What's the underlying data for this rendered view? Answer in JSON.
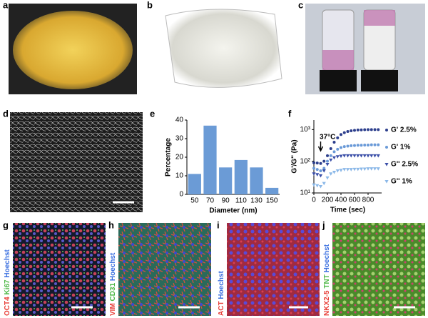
{
  "panels": {
    "labels": [
      "a",
      "b",
      "c",
      "d",
      "e",
      "f",
      "g",
      "h",
      "i",
      "j"
    ]
  },
  "stains": [
    [
      {
        "text": "OCT4",
        "color": "#e8403a"
      },
      {
        "text": "Ki67",
        "color": "#4fb848"
      },
      {
        "text": "Hoechst",
        "color": "#3a6fe0"
      }
    ],
    [
      {
        "text": "VIM",
        "color": "#e8403a"
      },
      {
        "text": "CD31",
        "color": "#4fb848"
      },
      {
        "text": "Hoechst",
        "color": "#3a6fe0"
      }
    ],
    [
      {
        "text": "ACT",
        "color": "#e8403a"
      },
      {
        "text": "Hoechst",
        "color": "#3a6fe0"
      }
    ],
    [
      {
        "text": "NKX2-5",
        "color": "#e8403a"
      },
      {
        "text": "TNT",
        "color": "#4fb848"
      },
      {
        "text": "Hoechst",
        "color": "#3a6fe0"
      }
    ]
  ],
  "chart_data": [
    {
      "type": "bar",
      "xlabel": "Diameter (nm)",
      "ylabel": "Percentage",
      "categories": [
        "50",
        "70",
        "90",
        "110",
        "130",
        "150"
      ],
      "values": [
        11,
        37,
        14.5,
        18.5,
        14.5,
        3.5
      ],
      "color": "#6b9bd6",
      "ylim": [
        0,
        40
      ],
      "yticks": [
        0,
        10,
        20,
        30,
        40
      ]
    },
    {
      "type": "scatter",
      "xlabel": "Time (sec)",
      "ylabel": "G'/G'' (Pa)",
      "annotation": "37°C",
      "log_y": true,
      "legend": "right",
      "x": [
        0,
        50,
        100,
        150,
        200,
        250,
        300,
        350,
        400,
        450,
        500,
        550,
        600,
        650,
        700,
        750,
        800,
        850,
        900,
        950
      ],
      "xlim": [
        0,
        1000
      ],
      "xticks": [
        0,
        200,
        400,
        600,
        800
      ],
      "ylim": [
        10,
        2000
      ],
      "yticks": [
        {
          "value": 10,
          "label": "10¹"
        },
        {
          "value": 100,
          "label": "10²"
        },
        {
          "value": 1000,
          "label": "10³"
        }
      ],
      "series": [
        {
          "name": "G' 2.5%",
          "color": "#2c3e8c",
          "marker": "circle",
          "values": [
            90,
            88,
            85,
            100,
            150,
            250,
            400,
            550,
            700,
            800,
            870,
            920,
            950,
            970,
            980,
            990,
            1000,
            1000,
            1000,
            1000
          ]
        },
        {
          "name": "G' 1%",
          "color": "#6a9ad8",
          "marker": "circle",
          "values": [
            60,
            55,
            50,
            60,
            100,
            150,
            200,
            240,
            270,
            290,
            300,
            310,
            315,
            320,
            320,
            325,
            325,
            330,
            330,
            330
          ]
        },
        {
          "name": "G'' 2.5%",
          "color": "#3b4fa8",
          "marker": "triangle",
          "values": [
            40,
            38,
            35,
            50,
            80,
            110,
            130,
            140,
            145,
            150,
            150,
            150,
            150,
            150,
            150,
            150,
            150,
            150,
            150,
            150
          ]
        },
        {
          "name": "G'' 1%",
          "color": "#8bb8e8",
          "marker": "triangle",
          "values": [
            18,
            17,
            16,
            20,
            30,
            40,
            45,
            50,
            52,
            55,
            55,
            55,
            56,
            56,
            57,
            57,
            58,
            58,
            58,
            58
          ]
        }
      ]
    }
  ]
}
